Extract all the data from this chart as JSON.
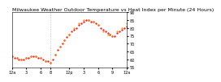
{
  "title": "Milwaukee Weather Outdoor Temperature vs Heat Index per Minute (24 Hours)",
  "ylabel": "",
  "xlabel": "",
  "ylim": [
    55,
    90
  ],
  "xlim": [
    0,
    1440
  ],
  "background_color": "#ffffff",
  "vline_x": 480,
  "temp_color": "#ff0000",
  "heat_color": "#ff8800",
  "temp_data_x": [
    0,
    30,
    60,
    90,
    120,
    150,
    180,
    210,
    240,
    270,
    300,
    330,
    360,
    390,
    420,
    450,
    480,
    510,
    540,
    570,
    600,
    630,
    660,
    690,
    720,
    750,
    780,
    810,
    840,
    870,
    900,
    930,
    960,
    990,
    1020,
    1050,
    1080,
    1110,
    1140,
    1170,
    1200,
    1230,
    1260,
    1290,
    1320,
    1350,
    1380,
    1410,
    1440
  ],
  "temp_data_y": [
    62,
    61,
    61,
    60,
    60,
    60,
    61,
    61,
    62,
    62,
    62,
    61,
    61,
    60,
    59,
    59,
    58,
    60,
    63,
    66,
    68,
    70,
    72,
    74,
    76,
    78,
    79,
    80,
    82,
    83,
    84,
    85,
    85,
    84,
    84,
    83,
    82,
    80,
    79,
    78,
    77,
    76,
    75,
    75,
    77,
    78,
    79,
    80,
    81
  ],
  "heat_data_x": [
    0,
    60,
    120,
    180,
    240,
    300,
    360,
    420,
    480,
    540,
    600,
    660,
    720,
    780,
    840,
    900,
    960,
    1020,
    1080,
    1140,
    1200,
    1260,
    1320,
    1380,
    1440
  ],
  "heat_data_y": [
    62,
    61,
    60,
    61,
    62,
    62,
    61,
    59,
    58,
    63,
    68,
    72,
    76,
    80,
    83,
    85,
    85,
    84,
    82,
    78,
    76,
    75,
    78,
    80,
    83
  ],
  "ytick_positions": [
    55,
    60,
    65,
    70,
    75,
    80,
    85,
    90
  ],
  "ytick_labels": [
    "55",
    "60",
    "65",
    "70",
    "75",
    "80",
    "85",
    "90"
  ],
  "xtick_positions": [
    0,
    180,
    360,
    480,
    720,
    900,
    1080,
    1260,
    1440
  ],
  "xtick_labels": [
    "12a",
    "3",
    "6",
    "8",
    "12p",
    "3",
    "6",
    "9",
    "12a"
  ],
  "title_fontsize": 4.5,
  "tick_fontsize": 3.5
}
